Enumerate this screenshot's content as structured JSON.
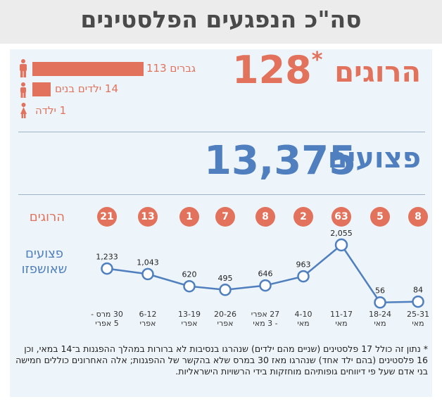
{
  "title": "סה\"כ הנפגעים הפלסטינים",
  "killed": {
    "label": "הרוגים",
    "total": "128",
    "asterisk": "*",
    "breakdown": [
      {
        "label": "גברים",
        "value": 113,
        "icon": "man-icon"
      },
      {
        "label": "ילדים בנים",
        "value": 14,
        "icon": "boy-icon"
      },
      {
        "label": "ילדה",
        "value": 1,
        "icon": "girl-icon"
      }
    ]
  },
  "injured": {
    "label": "פצועים",
    "total": "13,375"
  },
  "weekly": {
    "killed_row_label": "הרוגים",
    "hospitalized_label_line1": "פצועים",
    "hospitalized_label_line2": "שאושפזו"
  },
  "colors": {
    "killed": "#e2725b",
    "injured": "#4f7fbe",
    "panel": "#edf4fa",
    "title": "#4a4a4a"
  },
  "chart_data": {
    "type": "line",
    "x": [
      [
        "30 מרס -",
        "5 אפרי"
      ],
      [
        "6-12",
        "אפרי"
      ],
      [
        "13-19",
        "אפרי"
      ],
      [
        "20-26",
        "אפרי"
      ],
      [
        "27 אפרי",
        "- 3 מאי"
      ],
      [
        "4-10",
        "מאי"
      ],
      [
        "11-17",
        "מאי"
      ],
      [
        "18-24",
        "מאי"
      ],
      [
        "25-31",
        "מאי"
      ]
    ],
    "series": [
      {
        "name": "פצועים שאושפזו",
        "values": [
          1233,
          1043,
          620,
          495,
          646,
          963,
          2055,
          56,
          84
        ]
      }
    ],
    "killed_per_week": [
      21,
      13,
      1,
      7,
      8,
      2,
      63,
      5,
      8
    ],
    "data_labels": [
      "1,233",
      "1,043",
      "620",
      "495",
      "646",
      "963",
      "2,055",
      "56",
      "84"
    ],
    "ylim": [
      0,
      2055
    ],
    "grid": false
  },
  "footnote": "* נתון זה כולל 17 פלסטינים (שניים מהם ילדים) שנהרגו בנסיבות לא ברורות במהלך ההפגנות ב־14 במאי, וכן 16 פלסטינים (בהם ילד אחד) שנהרגו מאז 30 במרס שלא בהקשר של ההפגנות; אלה האחרונים כוללים חמישה בני אדם שעל פי דיווחים גופותיהם מוחזקות בידי הרשויות הישראליות."
}
